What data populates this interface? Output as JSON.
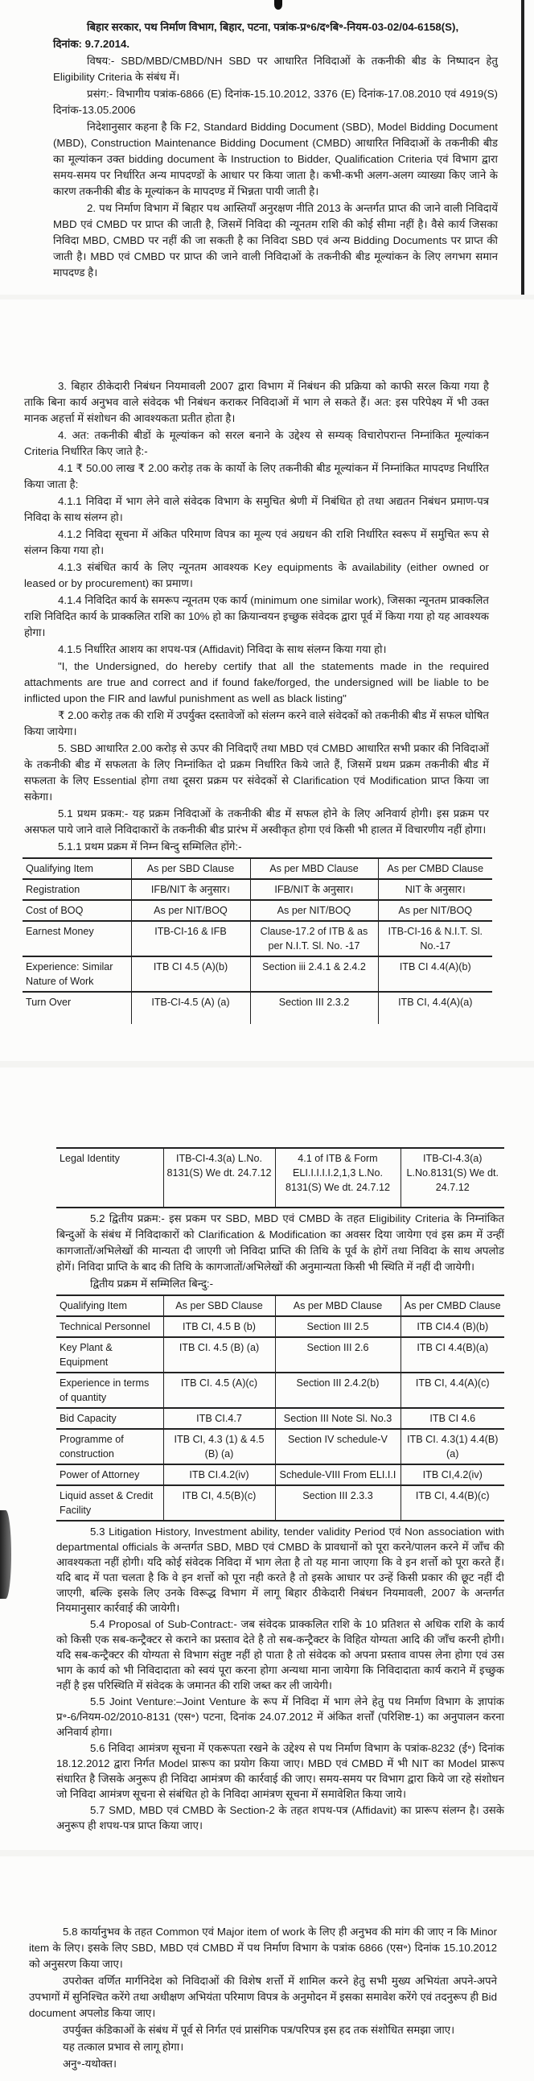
{
  "header": {
    "line1": "बिहार सरकार, पथ निर्माण विभाग, बिहार, पटना, पत्रांक-प्र॰6/द॰बि॰-नियम-03-02/04-6158(S),",
    "date": "दिनांक: 9.7.2014.",
    "subject": "विषय:- SBD/MBD/CMBD/NH SBD पर आधारित निविदाओं के तकनीकी बीड के निष्पादन हेतु Eligibility Criteria के संबंध में।",
    "reference": "प्रसंग:- विभागीय पत्रांक-6866 (E) दिनांक-15.10.2012, 3376 (E) दिनांक-17.08.2010 एवं 4919(S) दिनांक-13.05.2006"
  },
  "paragraphs": {
    "p1": "निदेशानुसार कहना है कि F2, Standard Bidding Document (SBD), Model Bidding Document (MBD), Construction Maintenance Bidding Document (CMBD) आधारित निविदाओं के तकनीकी बीड का मूल्यांकन उक्त bidding document के Instruction to Bidder, Qualification Criteria एवं विभाग द्वारा समय-समय पर निर्धारित अन्य मापदण्डों के आधार पर किया जाता है। कभी-कभी अलग-अलग व्याख्या किए जाने के कारण तकनीकी बीड के मूल्यांकन के मापदण्ड में भिन्नता पायी जाती है।",
    "p2": "2. पथ निर्माण विभाग में बिहार पथ आस्तियाँ अनुरक्षण नीति 2013 के अन्तर्गत प्राप्त की जाने वाली निविदायें MBD एवं CMBD पर प्राप्त की जाती है, जिसमें निविदा की न्यूनतम राशि की कोई सीमा नहीं है। वैसे कार्य जिसका निविदा MBD, CMBD पर नहीं की जा सकती है का निविदा SBD एवं अन्य Bidding Documents पर प्राप्त की जाती है। MBD एवं CMBD पर प्राप्त की जाने वाली निविदाओं के तकनीकी बीड मूल्यांकन के लिए लगभग समान मापदण्ड है।",
    "p3": "3. बिहार ठीकेदारी निबंधन नियमावली 2007 द्वारा विभाग में निबंधन की प्रक्रिया को काफी सरल किया गया है ताकि बिना कार्य अनुभव वाले संवेदक भी निबंधन कराकर निविदाओं में भाग ले सकते हैं। अत: इस परिपेक्ष्य में भी उक्त मानक अहर्त्ता में संशोधन की आवश्यकता प्रतीत होता है।",
    "p4": "4. अत: तकनीकी बीडों के मूल्यांकन को सरल बनाने के उद्देश्य से सम्यक् विचारोपरान्त निम्नांकित मूल्यांकन Criteria निर्धारित किए जाते है:-",
    "p4_1": "4.1 ₹ 50.00 लाख ₹ 2.00 करोड़ तक के कार्यो के लिए तकनीकी बीड मूल्यांकन में निम्नांकित मापदण्ड निर्धारित किया जाता है:",
    "p4_1_1": "4.1.1 निविदा में भाग लेने वाले संवेदक विभाग के समुचित श्रेणी में निबंधित हो तथा अद्यतन निबंधन प्रमाण-पत्र निविदा के साथ संलग्न हो।",
    "p4_1_2": "4.1.2 निविदा सूचना में अंकित परिमाण विपत्र का मूल्य एवं अग्रधन की राशि निर्धारित स्वरूप में समुचित रूप से संलग्न किया गया हो।",
    "p4_1_3": "4.1.3 संबंधित कार्य के लिए न्यूनतम आवश्यक Key equipments के availability (either owned or leased or by procurement) का प्रमाण।",
    "p4_1_4": "4.1.4 निविदित कार्य के समरूप न्यूनतम एक कार्य (minimum one similar work), जिसका न्यूनतम प्राक्कलित राशि निविदित कार्य के प्राक्कलित राशि का 10% हो का क्रियान्वयन इच्छुक संवेदक द्वारा पूर्व में किया गया हो यह आवश्यक होगा।",
    "p4_1_5": "4.1.5 निर्धारित आशय का शपथ-पत्र (Affidavit) निविदा के साथ संलग्न किया गया हो।",
    "quote": "\"I, the Undersigned, do hereby certify that all the statements made in the required attachments are true and correct and if found fake/forged, the undersigned will be liable to be inflicted upon the FIR and lawful punishment as well as black listing\"",
    "p_2cr": "₹ 2.00 करोड़ तक की राशि में उपर्युक्त दस्तावेजों को संलग्न करने वाले संवेदकों को तकनीकी बीड में सफल घोषित किया जायेगा।",
    "p5": "5. SBD आधारित 2.00 करोड़ से ऊपर की निविदाएँ तथा MBD एवं CMBD आधारित सभी प्रकार की निविदाओं के तकनीकी बीड में सफलता के लिए निम्नांकित दो प्रक्रम निर्धारित किये जाते हैं, जिसमें प्रथम प्रक्रम तकनीकी बीड में सफलता के लिए Essential होगा तथा दूसरा प्रक्रम पर संवेदकों से Clarification एवं Modification प्राप्त किया जा सकेगा।",
    "p5_1": "5.1 प्रथम प्रकम:- यह प्रक्रम निविदाओं के तकनीकी बीड में सफल होने के लिए अनिवार्य होगी। इस प्रक्रम पर असफल पाये जाने वाले निविदाकारों के तकनीकी बीड प्रारंभ में अस्वीकृत होगा एवं किसी भी हालत में विचारणीय नहीं होगा।",
    "p5_1_1": "5.1.1 प्रथम प्रक्रम में निम्न बिन्दु सम्मिलित होंगे:-",
    "p5_2": "5.2 द्वितीय प्रक्रम:- इस प्रकम पर SBD, MBD एवं CMBD के तहत Eligibility Criteria के निम्नांकित बिन्दुओं के संबंध में निविदाकारों को Clarification & Modification का अवसर दिया जायेगा एवं इस क्रम में उन्हीं कागजातों/अभिलेखों की मान्यता दी जाएगी जो निविदा प्राप्ति की तिथि के पूर्व के होगें तथा निविदा के साथ अपलोड होगें। निविदा प्राप्ति के बाद की तिथि के कागजातों/अभिलेखों की अनुमान्यता किसी भी स्थिति में नहीं दी जायेगी।",
    "p5_2_items": "द्वितीय प्रक्रम में सम्मिलित बिन्दु:-",
    "p5_3": "5.3 Litigation History, Investment ability, tender validity Period एवं Non association with departmental officials के अन्तर्गत SBD, MBD एवं CMBD के प्रावधानों को पूरा करने/पालन करने में जाँच की आवश्यकता नहीं होगी। यदि कोई संवेदक निविदा में भाग लेता है तो यह माना जाएगा कि वे इन शर्त्तो को पूरा करते हैं। यदि बाद में पता चलता है कि वे इन शर्त्तो को पूरा नही करते है तो इसके आधार पर उन्हें किसी प्रकार की छूट नहीं दी जाएगी, बल्कि इसके लिए उनके विरूद्ध विभाग में लागू बिहार ठीकेदारी निबंधन नियमावली, 2007 के अन्तर्गत नियमानुसार कार्रवाई की जायेगी।",
    "p5_4": "5.4 Proposal of Sub-Contract:- जब संवेदक प्राक्कलित राशि के 10 प्रतिशत से अधिक राशि के कार्य को किसी एक सब-कन्ट्रैक्टर से कराने का प्रस्ताव देते है तो सब-कन्ट्रैक्टर के विहित योग्यता आदि की जाँच करनी होगी। यदि सब-कन्ट्रैक्टर की योग्यता से विभाग संतुष्ट नहीं हो पाता है तो संवेदक को अपना प्रस्ताव वापस लेना होगा एवं उस भाग के कार्य को भी निविदादाता को स्वयं पूरा करना होगा अन्यथा माना जायेगा कि निविदादाता कार्य कराने में इच्छुक नहीं है इस परिस्थिति में संवेदक के जमानत की राशि जब्त कर ली जायेगी।",
    "p5_5": "5.5 Joint Venture:–Joint Venture के रूप में निविदा में भाग लेने हेतु पथ निर्माण विभाग के ज्ञापांक प्र॰-6/नियम-02/2010-8131 (एस॰) पटना, दिनांक 24.07.2012 में अंकित शर्त्तों (परिशिष्ट-1) का अनुपालन करना अनिवार्य होगा।",
    "p5_6": "5.6 निविदा आमंत्रण सूचना में एकरूपता रखने के उद्देश्य से पथ निर्माण विभाग के पत्रांक-8232 (ई॰) दिनांक 18.12.2012 द्वारा निर्गत Model प्रारूप का प्रयोग किया जाए। MBD एवं CMBD में भी NIT का Model प्रारूप संधारित है जिसके अनुरूप ही निविदा आमंत्रण की कार्रवाई की जाए। समय-समय पर विभाग द्वारा किये जा रहे संशोधन जो निविदा आमंत्रण सूचना से संबंधित हो के निविदा आमंत्रण सूचना में समावेशित किया जाये।",
    "p5_7": "5.7 SMD, MBD एवं CMBD के Section-2 के तहत शपथ-पत्र (Affidavit) का प्रारूप संलग्न है। उसके अनुरूप ही शपथ-पत्र प्राप्त किया जाए।",
    "p5_8": "5.8 कार्यानुभव के तहत Common एवं Major item of work के लिए ही अनुभव की मांग की जाए न कि Minor item के लिए। इसके लिए SBD, MBD एवं CMBD में पथ निर्माण विभाग के पत्रांक 6866 (एस॰) दिनांक 15.10.2012 को अनुसरण किया जाए।",
    "p_guidance": "उपरोक्त वर्णित मार्गनिदेश को निविदाओं की विशेष शर्त्तो में शामिल करने हेतु सभी मुख्य अभियंता अपने-अपने उपभागों में सुनिश्चित करेंगे तथा अधीक्षण अभियंता परिमाण विपत्र के अनुमोदन में इसका समावेश करेंगे एवं तदनुरूप ही Bid document अपलोड किया जाए।",
    "p_amend": "उपर्युक्त कंडिकाओं के संबंध में पूर्व से निर्गत एवं प्रासंगिक पत्र/परिपत्र इस हद तक संशोधित समझा जाए।",
    "p_effect": "यह तत्काल प्रभाव से लागू होगा।",
    "p_encl": "अनु॰-यथोक्त।"
  },
  "table1": {
    "headers": [
      "Qualifying Item",
      "As per SBD Clause",
      "As per MBD Clause",
      "As per CMBD Clause"
    ],
    "rows": [
      [
        "Registration",
        "IFB/NIT के अनुसार।",
        "IFB/NIT के अनुसार।",
        "NIT के अनुसार।"
      ],
      [
        "Cost of BOQ",
        "As per NIT/BOQ",
        "As per NIT/BOQ",
        "As per NIT/BOQ"
      ],
      [
        "Earnest Money",
        "ITB-CI-16 & IFB",
        "Clause-17.2 of ITB & as per N.I.T. Sl. No. -17",
        "ITB-CI-16 & N.I.T. Sl. No.-17"
      ],
      [
        "Experience: Similar Nature of Work",
        "ITB CI 4.5 (A)(b)",
        "Section iii 2.4.1 & 2.4.2",
        "ITB CI 4.4(A)(b)"
      ],
      [
        "Turn Over",
        "ITB-CI-4.5 (A) (a)",
        "Section III 2.3.2",
        "ITB CI, 4.4(A)(a)"
      ],
      [
        "Legal Identity",
        "ITB-CI-4.3(a) L.No. 8131(S) We dt. 24.7.12",
        "4.1 of ITB & Form ELI.I.I.I.I.2,1,3 L.No. 8131(S) We dt. 24.7.12",
        "ITB-CI-4.3(a) L.No.8131(S) We dt. 24.7.12"
      ]
    ]
  },
  "table2": {
    "headers": [
      "Qualifying Item",
      "As per SBD Clause",
      "As per MBD Clause",
      "As per CMBD Clause"
    ],
    "rows": [
      [
        "Technical Personnel",
        "ITB CI, 4.5 B (b)",
        "Section III 2.5",
        "ITB CI4.4 (B)(b)"
      ],
      [
        "Key Plant & Equipment",
        "ITB CI. 4.5 (B) (a)",
        "Section III 2.6",
        "ITB CI 4.4(B)(a)"
      ],
      [
        "Experience in terms of quantity",
        "ITB CI. 4.5 (A)(c)",
        "Section III 2.4.2(b)",
        "ITB CI, 4.4(A)(c)"
      ],
      [
        "Bid Capacity",
        "ITB CI.4.7",
        "Section III Note Sl. No.3",
        "ITB CI 4.6"
      ],
      [
        "Programme of construction",
        "ITB CI, 4.3 (1) & 4.5 (B) (a)",
        "Section IV schedule-V",
        "ITB CI. 4.3(1) 4.4(B) (a)"
      ],
      [
        "Power of Attorney",
        "ITB CI.4.2(iv)",
        "Schedule-VIII From ELI.I.I",
        "ITB CI,4.2(iv)"
      ],
      [
        "Liquid asset & Credit Facility",
        "ITB CI, 4.5(B)(c)",
        "Section III 2.3.3",
        "ITB CI, 4.4(B)(c)"
      ]
    ]
  }
}
